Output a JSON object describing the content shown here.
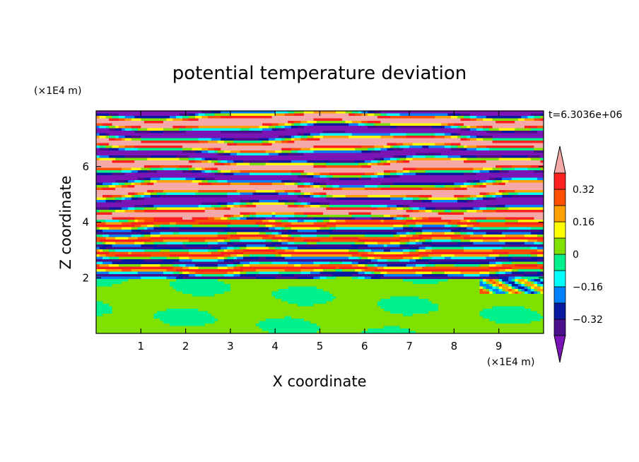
{
  "chart_data": {
    "type": "heatmap",
    "title": "potential temperature deviation",
    "xlabel": "X coordinate",
    "ylabel": "Z coordinate",
    "x_unit_label": "(×1E4 m)",
    "y_unit_label": "(×1E4 m)",
    "time_label": "t=6.3036e+06",
    "xlim": [
      0,
      10
    ],
    "ylim": [
      0,
      8
    ],
    "x_ticks": [
      "1",
      "2",
      "3",
      "4",
      "5",
      "6",
      "7",
      "8",
      "9"
    ],
    "y_ticks": [
      "2",
      "4",
      "6"
    ],
    "colorbar": {
      "levels": [
        -0.4,
        -0.32,
        -0.24,
        -0.16,
        -0.08,
        0,
        0.08,
        0.16,
        0.24,
        0.32,
        0.4
      ],
      "labels": [
        "0.32",
        "0.16",
        "0",
        "−0.16",
        "−0.32"
      ],
      "label_values": [
        0.32,
        0.16,
        0,
        -0.16,
        -0.32
      ],
      "colors": [
        "#7b14b4",
        "#4a108c",
        "#0a1aa0",
        "#0080ff",
        "#00ffff",
        "#00f08c",
        "#80e000",
        "#ffff00",
        "#ffa000",
        "#ff5000",
        "#ff2020",
        "#f4a8a8"
      ],
      "extend": "both"
    },
    "field_description_rows": [
      {
        "z_from": 0,
        "z_to": 2,
        "value": 0.02
      },
      {
        "z_from": 2,
        "z_to": 4,
        "value": 0.1
      },
      {
        "z_from": 4,
        "z_to": 8,
        "value": 0.45
      }
    ]
  }
}
